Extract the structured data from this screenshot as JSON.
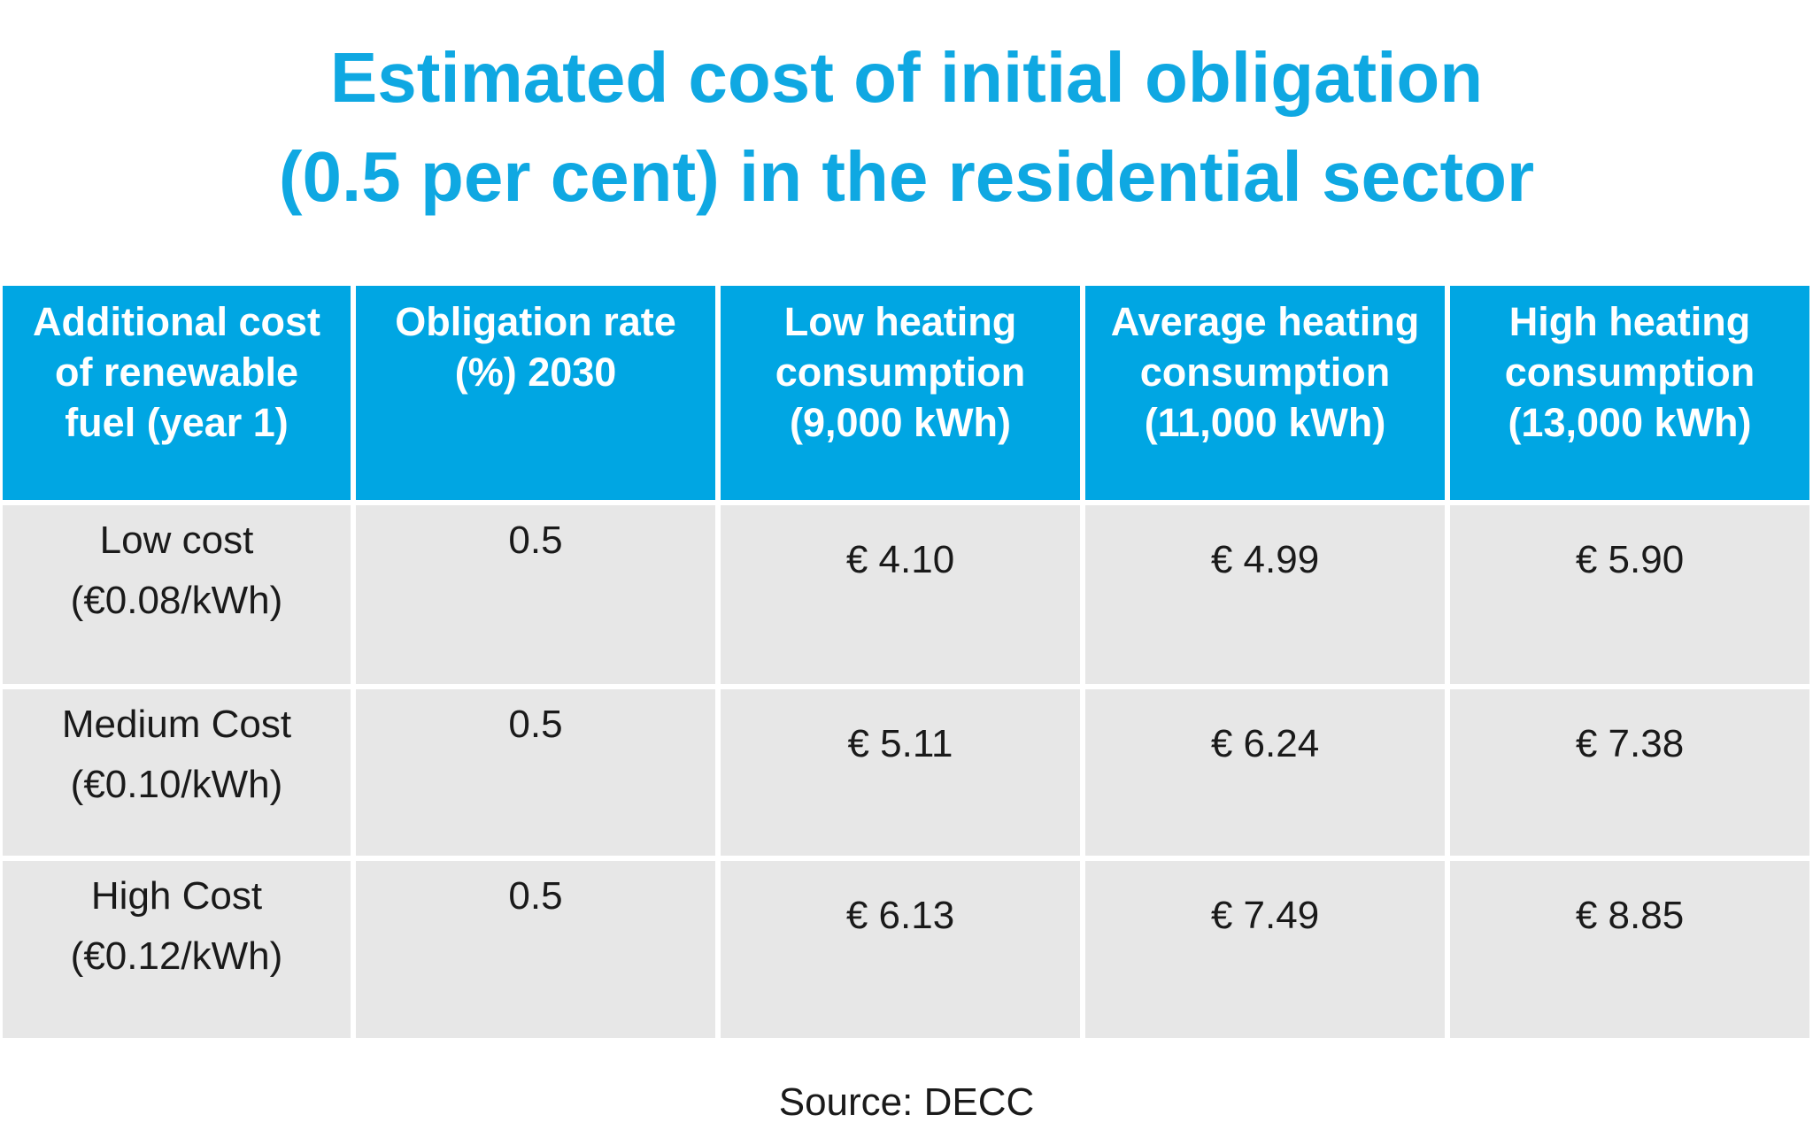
{
  "title": {
    "line1": "Estimated cost of initial obligation",
    "line2": "(0.5 per cent) in the residential sector"
  },
  "colors": {
    "accent": "#00a6e3",
    "title": "#0fa8e2",
    "row_bg": "#e7e7e7"
  },
  "chart_data": {
    "type": "table",
    "columns": [
      [
        "Additional cost",
        "of renewable",
        "fuel (year 1)"
      ],
      [
        "Obligation rate",
        "(%) 2030"
      ],
      [
        "Low heating",
        "consumption",
        "(9,000 kWh)"
      ],
      [
        "Average heating",
        "consumption",
        "(11,000 kWh)"
      ],
      [
        "High heating",
        "consumption",
        "(13,000 kWh)"
      ]
    ],
    "rows": [
      {
        "cost_label": [
          "Low cost",
          "(€0.08/kWh)"
        ],
        "rate": "0.5",
        "low": "€ 4.10",
        "average": "€ 4.99",
        "high": "€ 5.90"
      },
      {
        "cost_label": [
          "Medium Cost",
          "(€0.10/kWh)"
        ],
        "rate": "0.5",
        "low": "€ 5.11",
        "average": "€ 6.24",
        "high": "€ 7.38"
      },
      {
        "cost_label": [
          "High Cost",
          "(€0.12/kWh)"
        ],
        "rate": "0.5",
        "low": "€ 6.13",
        "average": "€ 7.49",
        "high": "€ 8.85"
      }
    ]
  },
  "source": "Source: DECC"
}
